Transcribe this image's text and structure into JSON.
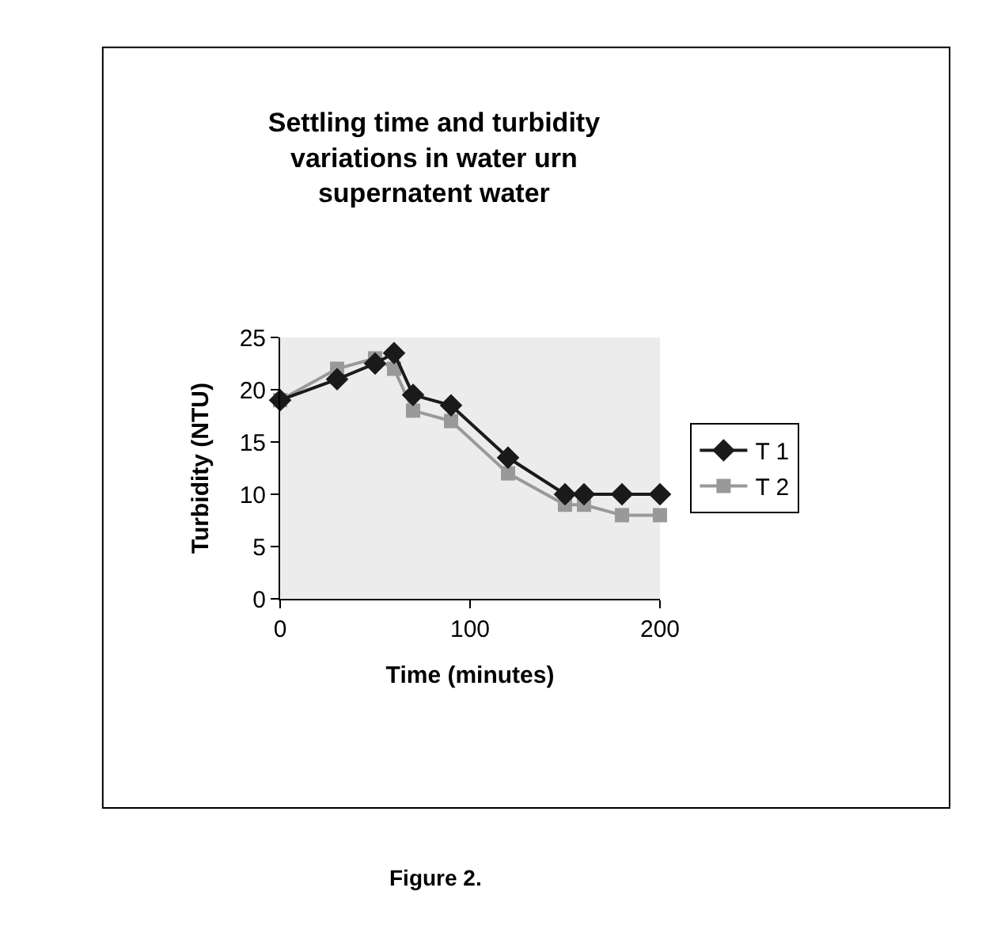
{
  "chart_data": {
    "type": "line",
    "title": "Settling time and turbidity\nvariations in water urn\nsupernatent water",
    "xlabel": "Time (minutes)",
    "ylabel": "Turbidity (NTU)",
    "x": [
      0,
      30,
      50,
      60,
      70,
      90,
      120,
      150,
      160,
      180,
      200
    ],
    "series": [
      {
        "name": "T 1",
        "color": "#1a1a1a",
        "marker": "diamond",
        "values": [
          19,
          21,
          22.5,
          23.5,
          19.5,
          18.5,
          13.5,
          10,
          10,
          10,
          10
        ]
      },
      {
        "name": "T 2",
        "color": "#999999",
        "marker": "square",
        "values": [
          19,
          22,
          23,
          22,
          18,
          17,
          12,
          9,
          9,
          8,
          8
        ]
      }
    ],
    "xlim": [
      0,
      200
    ],
    "xticks": [
      0,
      100,
      200
    ],
    "ylim": [
      0,
      25
    ],
    "yticks": [
      0,
      5,
      10,
      15,
      20,
      25
    ],
    "grid": false,
    "legend": "right",
    "line_style": "solid",
    "annotations": [
      "Figure 2."
    ]
  }
}
